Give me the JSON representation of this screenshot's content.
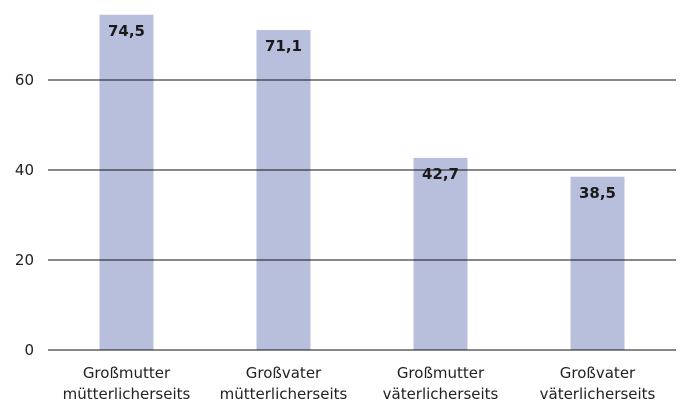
{
  "colors": {
    "bar": "#b8bfdd",
    "grid": "#111111"
  },
  "chart_data": {
    "type": "bar",
    "categories": [
      [
        "Großmutter",
        "mütterlicherseits"
      ],
      [
        "Großvater",
        "mütterlicherseits"
      ],
      [
        "Großmutter",
        "väterlicherseits"
      ],
      [
        "Großvater",
        "väterlicherseits"
      ]
    ],
    "values": [
      74.5,
      71.1,
      42.7,
      38.5
    ],
    "value_labels": [
      "74,5",
      "71,1",
      "42,7",
      "38,5"
    ],
    "yticks": [
      0,
      20,
      40,
      60
    ],
    "ylim": [
      0,
      76
    ],
    "grid": true,
    "title": "",
    "xlabel": "",
    "ylabel": ""
  }
}
